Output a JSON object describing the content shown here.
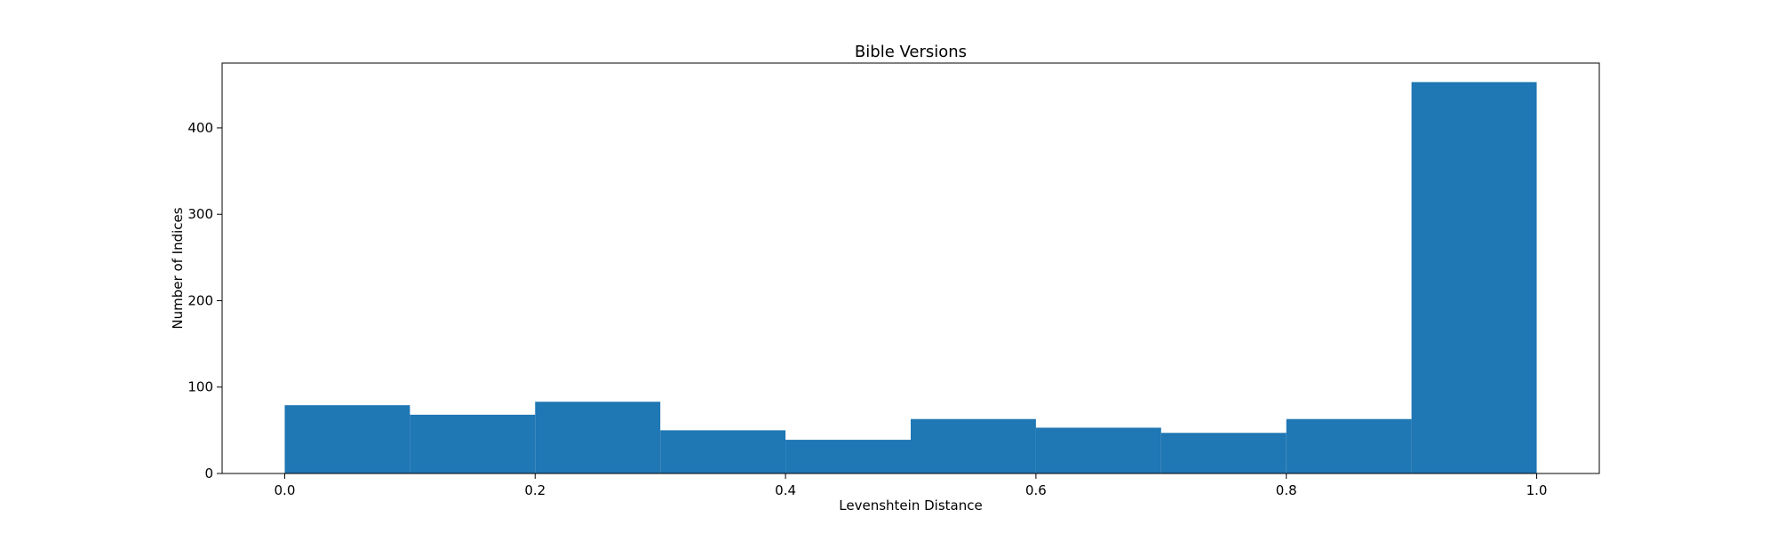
{
  "chart_data": {
    "type": "histogram",
    "title": "Bible Versions",
    "xlabel": "Levenshtein Distance",
    "ylabel": "Number of Indices",
    "bins": [
      0.0,
      0.1,
      0.2,
      0.3,
      0.4,
      0.5,
      0.6,
      0.7,
      0.8,
      0.9,
      1.0
    ],
    "counts": [
      79,
      68,
      83,
      50,
      39,
      63,
      53,
      47,
      63,
      453
    ],
    "color": "#1f77b4",
    "xlim": [
      -0.05,
      1.05
    ],
    "ylim": [
      0,
      475
    ],
    "xticks": [
      {
        "value": 0.0,
        "label": "0.0"
      },
      {
        "value": 0.2,
        "label": "0.2"
      },
      {
        "value": 0.4,
        "label": "0.4"
      },
      {
        "value": 0.6,
        "label": "0.6"
      },
      {
        "value": 0.8,
        "label": "0.8"
      },
      {
        "value": 1.0,
        "label": "1.0"
      }
    ],
    "yticks": [
      0,
      100,
      200,
      300,
      400
    ],
    "grid": false
  }
}
